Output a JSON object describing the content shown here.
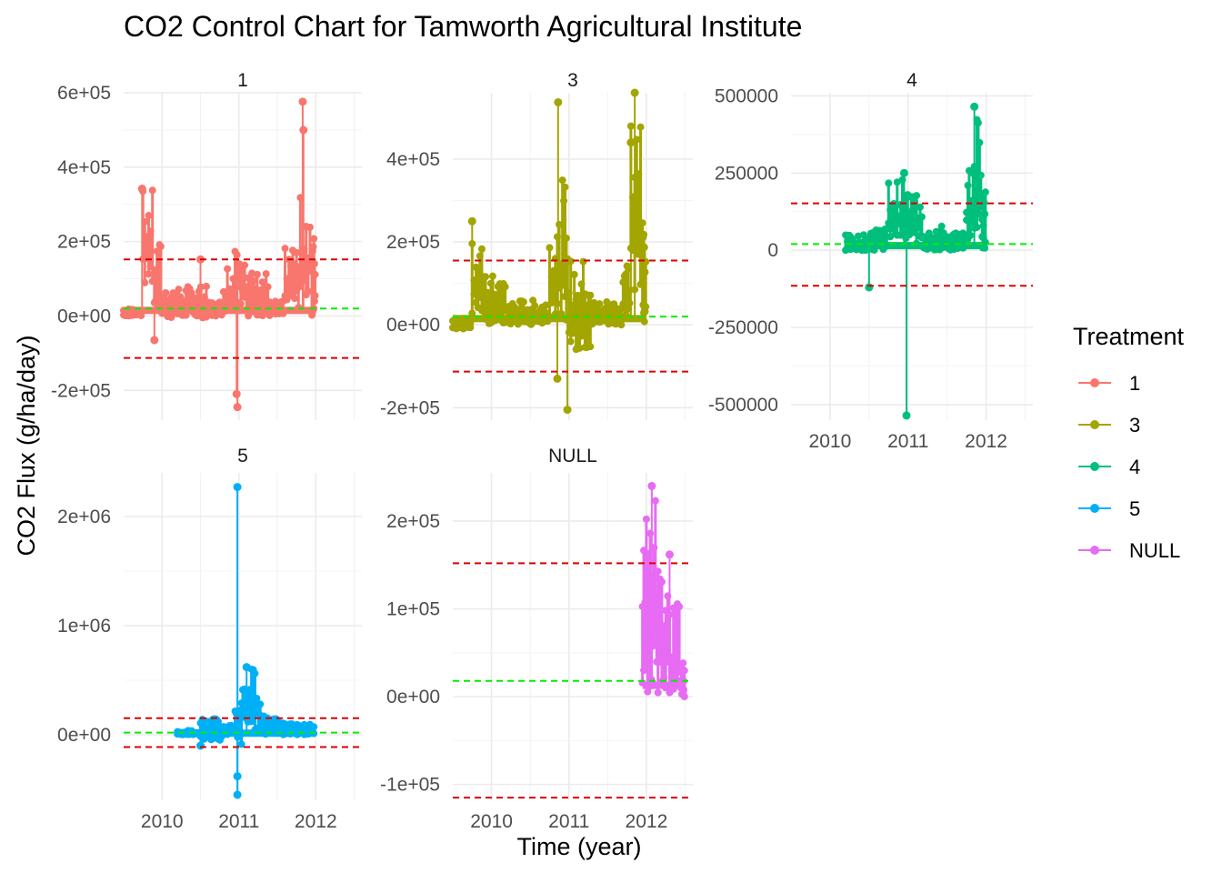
{
  "chart_data": {
    "type": "line",
    "title": "CO2 Control Chart for Tamworth Agricultural Institute",
    "xlabel": "Time (year)",
    "ylabel": "CO2 Flux (g/ha/day)",
    "x_ticks": [
      2010,
      2011,
      2012
    ],
    "legend": {
      "title": "Treatment",
      "placement": "right",
      "entries": [
        "1",
        "3",
        "4",
        "5",
        "NULL"
      ]
    },
    "grid": true,
    "control_lines": {
      "center_color": "#00ee00",
      "limit_color": "#dd0000",
      "style": "dashed"
    },
    "panels": [
      {
        "name": "1",
        "color": "#F8766D",
        "x_range": [
          2009.5,
          2012.1
        ],
        "ylim": [
          -280000,
          600000
        ],
        "y_ticks": [
          -200000,
          0,
          200000,
          400000,
          600000
        ],
        "y_tick_labels": [
          "-2e+05",
          "0e+00",
          "2e+05",
          "4e+05",
          "6e+05"
        ],
        "center_line": 20000,
        "upper_control_limit": 152000,
        "lower_control_limit": -113000,
        "x_range_data": [
          2009.5,
          2012.0
        ],
        "segments": [
          [
            2009.5,
            0,
            20000
          ],
          [
            2009.75,
            80000,
            340000
          ],
          [
            2009.9,
            10000,
            200000
          ],
          [
            2010.0,
            -5000,
            80000
          ],
          [
            2010.6,
            0,
            40000
          ],
          [
            2010.8,
            10000,
            140000
          ],
          [
            2010.95,
            20000,
            270000
          ],
          [
            2011.1,
            0,
            120000
          ],
          [
            2011.4,
            0,
            40000
          ],
          [
            2011.6,
            20000,
            200000
          ],
          [
            2011.8,
            40000,
            320000
          ],
          [
            2011.95,
            0,
            220000
          ]
        ],
        "extremes": [
          [
            2009.74,
            342000
          ],
          [
            2009.9,
            -65000
          ],
          [
            2010.5,
            152000
          ],
          [
            2010.98,
            -245000
          ],
          [
            2010.97,
            -210000
          ],
          [
            2011.83,
            576000
          ],
          [
            2011.84,
            500000
          ]
        ]
      },
      {
        "name": "3",
        "color": "#A3A500",
        "x_range": [
          2009.5,
          2012.1
        ],
        "ylim": [
          -230000,
          560000
        ],
        "y_ticks": [
          -200000,
          0,
          200000,
          400000
        ],
        "y_tick_labels": [
          "-2e+05",
          "0e+00",
          "2e+05",
          "4e+05"
        ],
        "center_line": 20000,
        "upper_control_limit": 155000,
        "lower_control_limit": -113000,
        "x_range_data": [
          2009.5,
          2012.0
        ],
        "segments": [
          [
            2009.5,
            -10000,
            20000
          ],
          [
            2009.75,
            20000,
            230000
          ],
          [
            2009.9,
            0,
            120000
          ],
          [
            2010.2,
            0,
            60000
          ],
          [
            2010.75,
            20000,
            260000
          ],
          [
            2010.9,
            10000,
            350000
          ],
          [
            2011.0,
            -60000,
            160000
          ],
          [
            2011.3,
            0,
            60000
          ],
          [
            2011.7,
            20000,
            160000
          ],
          [
            2011.8,
            40000,
            540000
          ],
          [
            2011.95,
            0,
            280000
          ]
        ],
        "extremes": [
          [
            2009.75,
            250000
          ],
          [
            2010.86,
            537000
          ],
          [
            2010.98,
            -205000
          ],
          [
            2010.85,
            -130000
          ],
          [
            2011.85,
            560000
          ],
          [
            2011.8,
            440000
          ]
        ]
      },
      {
        "name": "4",
        "color": "#00BF7D",
        "x_range": [
          2009.5,
          2012.1
        ],
        "ylim": [
          -550000,
          510000
        ],
        "y_ticks": [
          -500000,
          -250000,
          0,
          250000,
          500000
        ],
        "y_tick_labels": [
          "-500000",
          "-250000",
          "0",
          "250000",
          "500000"
        ],
        "center_line": 20000,
        "upper_control_limit": 152000,
        "lower_control_limit": -115000,
        "x_range_data": [
          2010.2,
          2012.0
        ],
        "segments": [
          [
            2010.2,
            0,
            50000
          ],
          [
            2010.5,
            0,
            80000
          ],
          [
            2010.75,
            30000,
            230000
          ],
          [
            2010.95,
            20000,
            200000
          ],
          [
            2011.2,
            0,
            80000
          ],
          [
            2011.5,
            0,
            60000
          ],
          [
            2011.75,
            30000,
            260000
          ],
          [
            2011.85,
            60000,
            460000
          ],
          [
            2011.95,
            0,
            200000
          ]
        ],
        "extremes": [
          [
            2010.95,
            250000
          ],
          [
            2010.5,
            -120000
          ],
          [
            2010.98,
            -535000
          ],
          [
            2011.85,
            465000
          ]
        ]
      },
      {
        "name": "5",
        "color": "#00B0F6",
        "x_range": [
          2009.5,
          2012.1
        ],
        "ylim": [
          -600000,
          2400000
        ],
        "y_ticks": [
          0,
          1000000,
          2000000
        ],
        "y_tick_labels": [
          "0e+00",
          "1e+06",
          "2e+06"
        ],
        "center_line": 20000,
        "upper_control_limit": 152000,
        "lower_control_limit": -113000,
        "x_range_data": [
          2010.2,
          2012.0
        ],
        "segments": [
          [
            2010.2,
            0,
            40000
          ],
          [
            2010.5,
            -50000,
            150000
          ],
          [
            2010.8,
            0,
            100000
          ],
          [
            2010.95,
            -100000,
            350000
          ],
          [
            2011.05,
            40000,
            620000
          ],
          [
            2011.3,
            0,
            200000
          ],
          [
            2011.6,
            0,
            100000
          ],
          [
            2011.85,
            0,
            100000
          ]
        ],
        "extremes": [
          [
            2010.98,
            2270000
          ],
          [
            2010.98,
            -550000
          ],
          [
            2010.98,
            -380000
          ],
          [
            2011.1,
            620000
          ],
          [
            2010.5,
            -100000
          ]
        ]
      },
      {
        "name": "NULL",
        "color": "#E76BF3",
        "x_range": [
          2009.5,
          2012.1
        ],
        "ylim": [
          -118000,
          255000
        ],
        "y_ticks": [
          -100000,
          0,
          100000,
          200000
        ],
        "y_tick_labels": [
          "-1e+05",
          "0e+00",
          "1e+05",
          "2e+05"
        ],
        "center_line": 18000,
        "upper_control_limit": 152000,
        "lower_control_limit": -115000,
        "x_range_data": [
          2011.95,
          2012.5
        ],
        "segments": [
          [
            2011.95,
            0,
            210000
          ],
          [
            2012.05,
            10000,
            240000
          ],
          [
            2012.15,
            0,
            150000
          ],
          [
            2012.3,
            0,
            110000
          ],
          [
            2012.45,
            0,
            40000
          ]
        ],
        "extremes": [
          [
            2012.07,
            240000
          ],
          [
            2012.3,
            162000
          ]
        ]
      }
    ]
  }
}
